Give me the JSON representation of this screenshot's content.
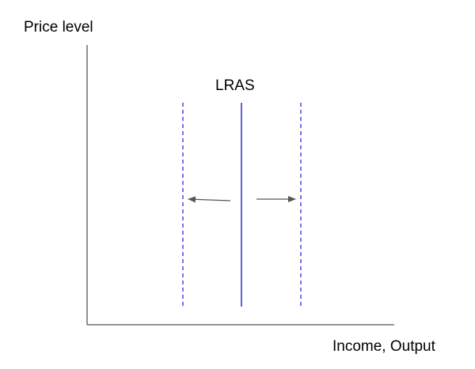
{
  "diagram": {
    "y_axis_label": "Price level",
    "x_axis_label": "Income, Output",
    "curve_label": "LRAS",
    "colors": {
      "axes": "#555555",
      "lras_line": "#2020c8",
      "shifted_lines": "#2a2ae0",
      "arrows": "#555555",
      "text": "#000000"
    }
  }
}
